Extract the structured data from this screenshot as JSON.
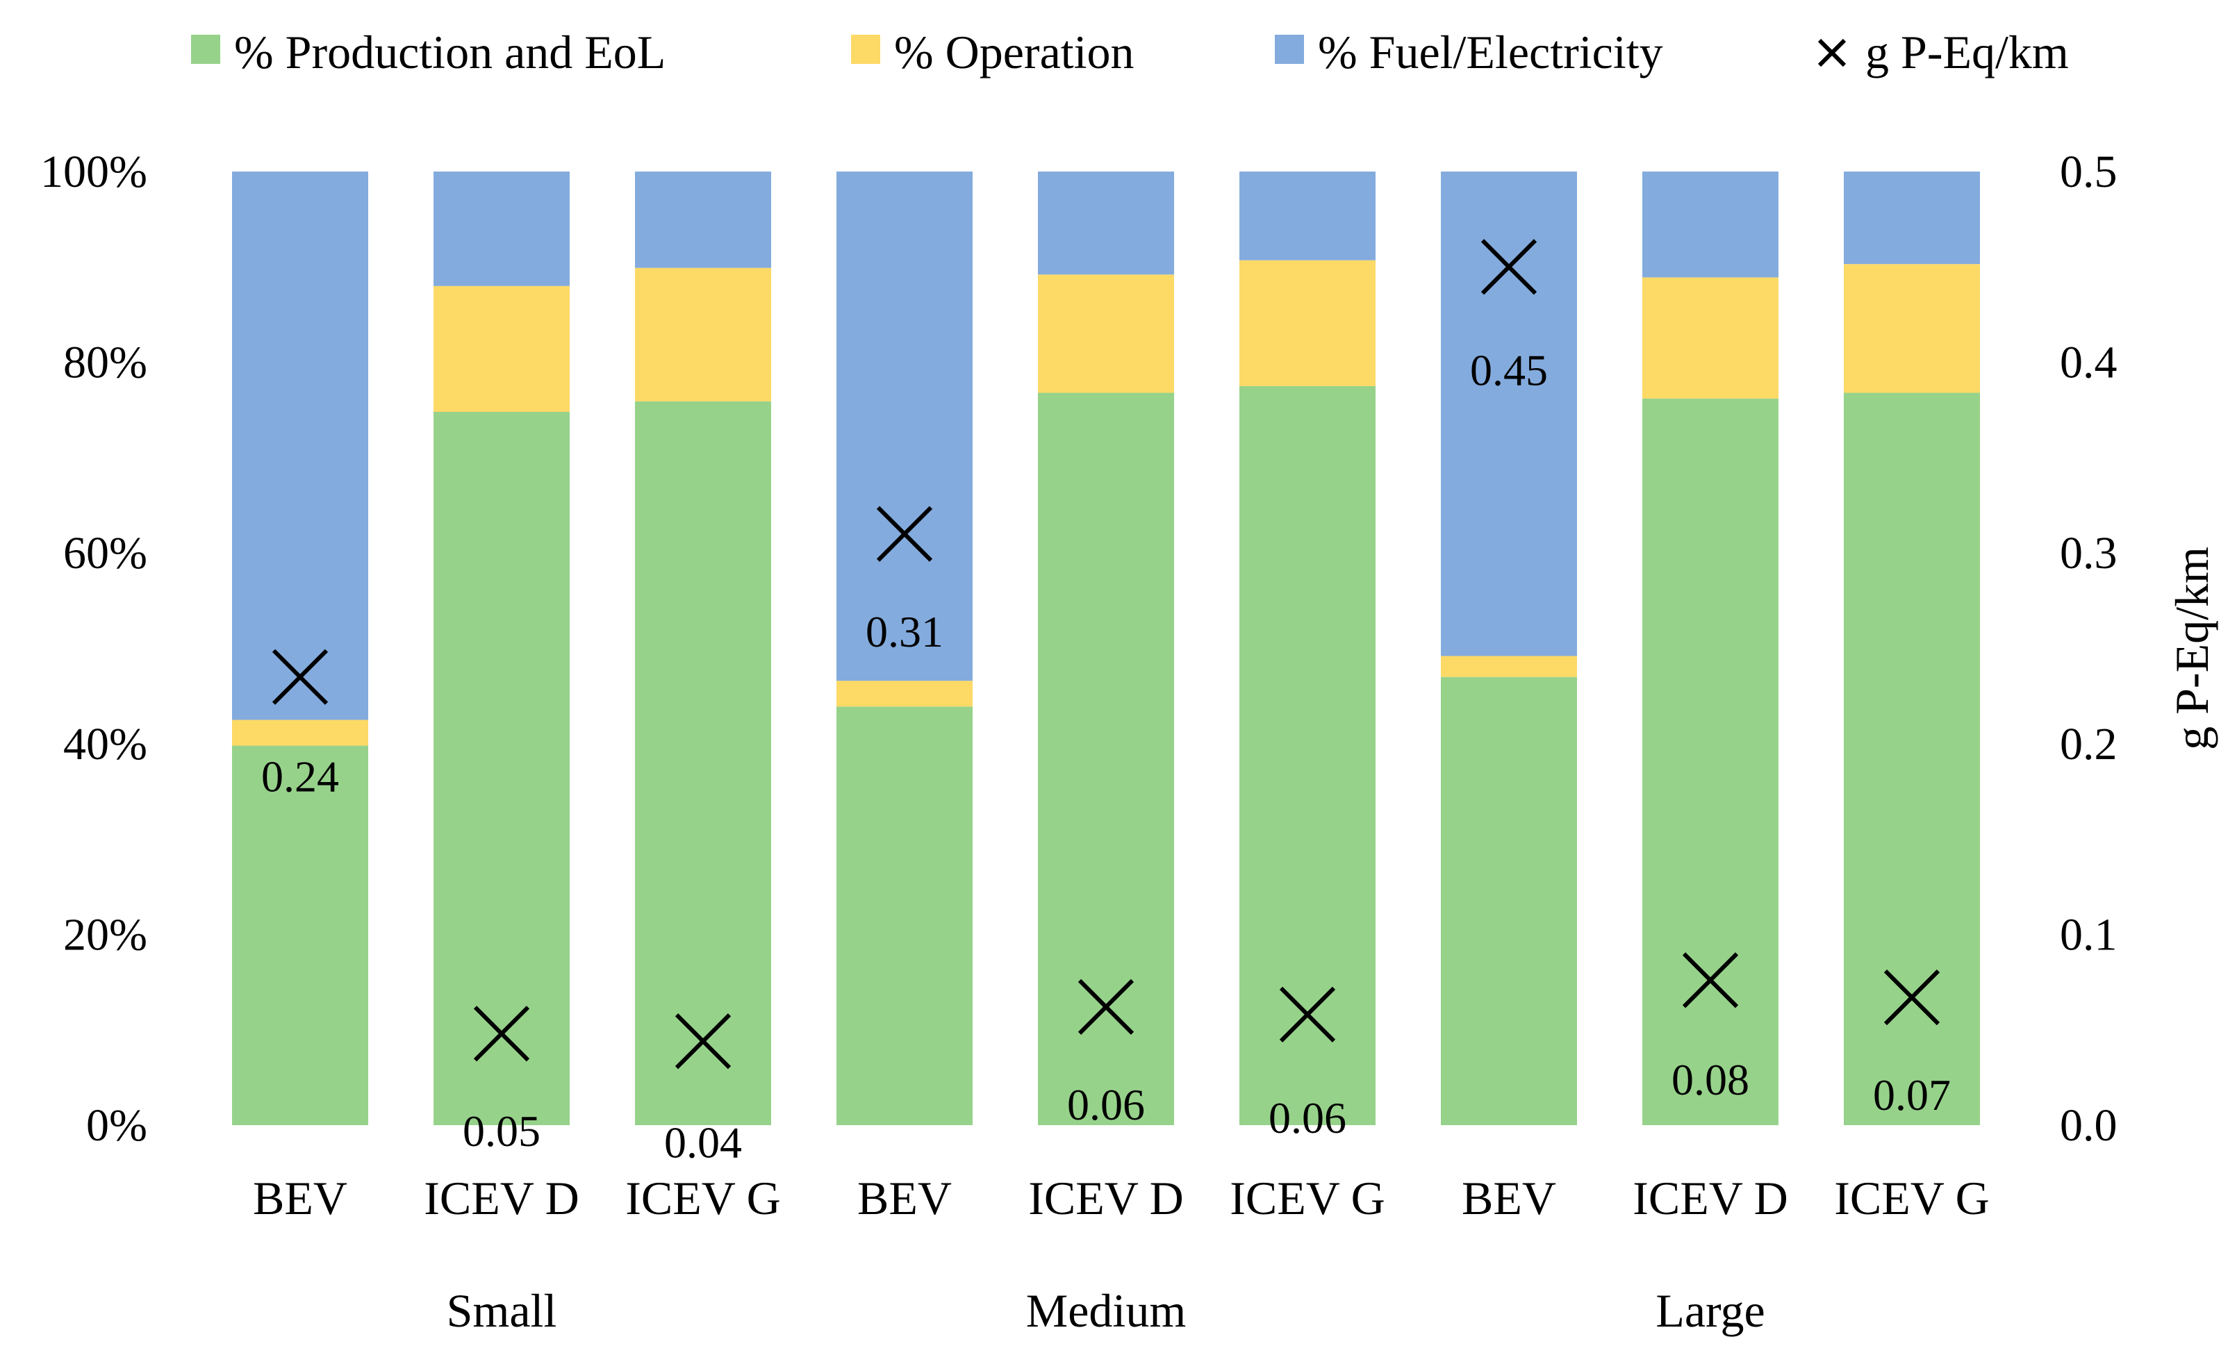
{
  "chart_data": {
    "type": "bar",
    "stacked": true,
    "percent_stacked": true,
    "groups": [
      "Small",
      "Medium",
      "Large"
    ],
    "categories": [
      "BEV",
      "ICEV D",
      "ICEV G",
      "BEV",
      "ICEV D",
      "ICEV G",
      "BEV",
      "ICEV D",
      "ICEV G"
    ],
    "series": [
      {
        "name": "% Production and EoL",
        "color": "#97d28b",
        "values": [
          39.8,
          74.8,
          75.9,
          43.9,
          76.8,
          77.5,
          47.0,
          76.2,
          76.8
        ]
      },
      {
        "name": "% Operation",
        "color": "#fdd966",
        "values": [
          2.7,
          13.2,
          14.0,
          2.7,
          12.4,
          13.2,
          2.2,
          12.7,
          13.5
        ]
      },
      {
        "name": "% Fuel/Electricity",
        "color": "#84abdd",
        "values": [
          57.5,
          12.0,
          10.1,
          53.4,
          10.8,
          9.3,
          50.8,
          11.1,
          9.7
        ]
      }
    ],
    "secondary_series": {
      "name": "g P-Eq/km",
      "marker": "x",
      "values": [
        0.24,
        0.05,
        0.04,
        0.31,
        0.06,
        0.06,
        0.45,
        0.08,
        0.07
      ],
      "labels": [
        "0.24",
        "0.05",
        "0.04",
        "0.31",
        "0.06",
        "0.06",
        "0.45",
        "0.08",
        "0.07"
      ],
      "marker_values": [
        0.235,
        0.048,
        0.044,
        0.31,
        0.062,
        0.058,
        0.45,
        0.076,
        0.067
      ],
      "label_values": [
        0.183,
        -0.003,
        -0.009,
        0.259,
        0.011,
        0.004,
        0.396,
        0.024,
        0.016
      ]
    },
    "y_left": {
      "ticks": [
        "0%",
        "20%",
        "40%",
        "60%",
        "80%",
        "100%"
      ],
      "ylim": [
        0,
        100
      ]
    },
    "y_right": {
      "label": "g P-Eq/km",
      "ticks": [
        "0.0",
        "0.1",
        "0.2",
        "0.3",
        "0.4",
        "0.5"
      ],
      "ylim": [
        0,
        0.5
      ]
    },
    "legend": {
      "position": "top"
    },
    "grid": false
  }
}
